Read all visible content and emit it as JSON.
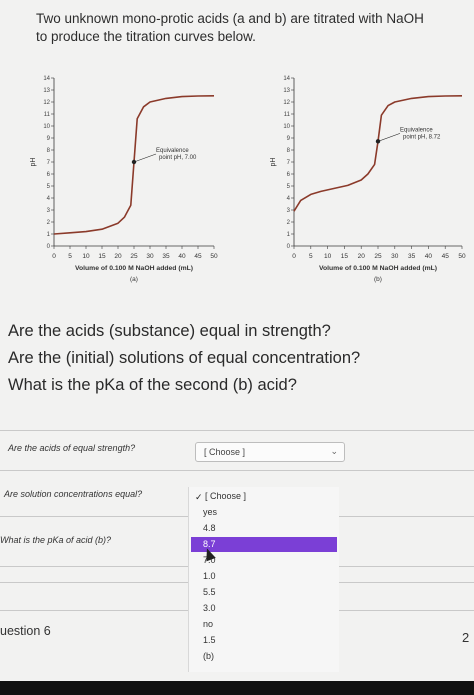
{
  "intro": {
    "line1": "Two unknown mono-protic acids (a and b) are titrated with NaOH",
    "line2": "to produce the titration curves below."
  },
  "chart_data": [
    {
      "type": "line",
      "ylabel": "pH",
      "xlabel": "Volume of 0.100 M NaOH added (mL)",
      "caption": "(a)",
      "xlim": [
        0,
        50
      ],
      "ylim": [
        0,
        14
      ],
      "x_ticks": [
        0,
        5,
        10,
        15,
        20,
        25,
        30,
        35,
        40,
        45,
        50
      ],
      "y_ticks": [
        0,
        1,
        2,
        3,
        4,
        5,
        6,
        7,
        8,
        9,
        10,
        11,
        12,
        13,
        14
      ],
      "annotation": {
        "line1": "Equivalence",
        "line2": "point pH, 7.00",
        "x": 25,
        "y": 7.0
      },
      "series": [
        {
          "x": [
            0,
            5,
            10,
            15,
            20,
            22,
            24,
            25,
            26,
            28,
            30,
            35,
            40,
            45,
            50
          ],
          "y": [
            1.0,
            1.1,
            1.2,
            1.4,
            1.9,
            2.4,
            3.4,
            7.0,
            10.6,
            11.6,
            12.0,
            12.3,
            12.45,
            12.5,
            12.52
          ]
        }
      ]
    },
    {
      "type": "line",
      "ylabel": "pH",
      "xlabel": "Volume of 0.100 M NaOH added (mL)",
      "caption": "(b)",
      "xlim": [
        0,
        50
      ],
      "ylim": [
        0,
        14
      ],
      "x_ticks": [
        0,
        5,
        10,
        15,
        20,
        25,
        30,
        35,
        40,
        45,
        50
      ],
      "y_ticks": [
        0,
        1,
        2,
        3,
        4,
        5,
        6,
        7,
        8,
        9,
        10,
        11,
        12,
        13,
        14
      ],
      "annotation": {
        "line1": "Equivalence",
        "line2": "point pH, 8.72",
        "x": 25,
        "y": 8.72
      },
      "series": [
        {
          "x": [
            0,
            2,
            5,
            8,
            12,
            16,
            20,
            22,
            24,
            25,
            26,
            28,
            30,
            35,
            40,
            45,
            50
          ],
          "y": [
            2.9,
            3.8,
            4.3,
            4.55,
            4.8,
            5.05,
            5.5,
            6.0,
            6.8,
            8.72,
            10.9,
            11.7,
            12.0,
            12.3,
            12.45,
            12.5,
            12.52
          ]
        }
      ]
    }
  ],
  "questions": {
    "q1": "Are the acids (substance) equal in strength?",
    "q2": "Are the (initial) solutions of equal concentration?",
    "q3": "What is the pKa of the second (b) acid?"
  },
  "form": {
    "row1_label": "Are the acids of equal strength?",
    "row2_label": "Are solution concentrations equal?",
    "row3_label": "What is the pKa of acid (b)?",
    "select_value": "[ Choose ]",
    "menu_options": [
      "[ Choose ]",
      "yes",
      "4.8",
      "8.7",
      "7.0",
      "1.0",
      "5.5",
      "3.0",
      "no",
      "1.5",
      "(b)"
    ],
    "highlighted_index": 3
  },
  "footer": {
    "question_heading": "uestion 6",
    "page_number": "2"
  },
  "colors": {
    "curve": "#8b3a2a",
    "highlight": "#7b3fd6"
  }
}
